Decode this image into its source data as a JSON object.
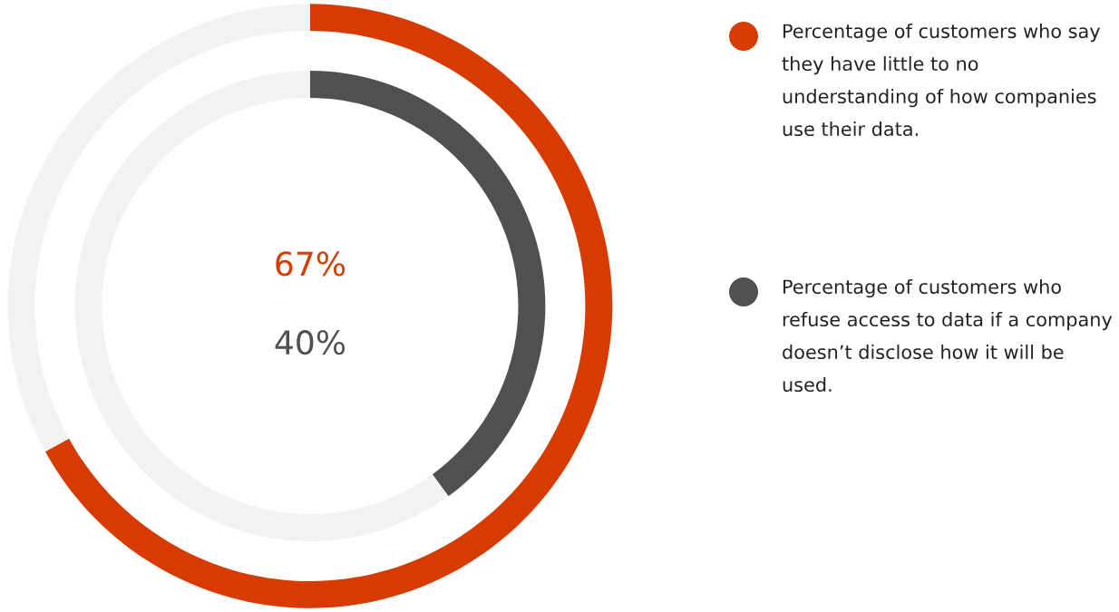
{
  "chart_data": {
    "type": "donut",
    "categories": [
      null,
      null
    ],
    "series": [
      {
        "name": "Percentage of customers who say they have little to no understanding of how companies use their data.",
        "colors": [
          "#d83b01",
          "#f2f2f2"
        ],
        "values": [
          67,
          33
        ]
      },
      {
        "name": "Percentage of customers who refuse access to data if a company doesn’t disclose how it will be used.",
        "colors": [
          "#505050",
          "#f2f2f2"
        ],
        "values": [
          40,
          60
        ]
      }
    ],
    "annotations": [
      "67%",
      "40%"
    ],
    "legend": "right"
  }
}
